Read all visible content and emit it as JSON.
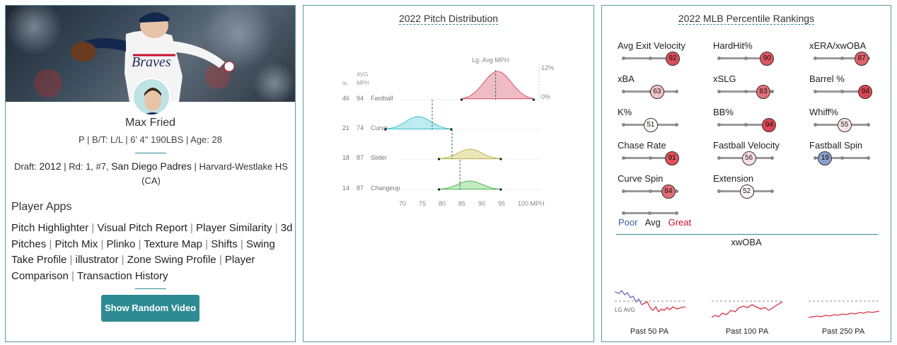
{
  "player": {
    "name": "Max Fried",
    "bio": "P | B/T: L/L | 6' 4\" 190LBS | Age: 28",
    "draft_prefix": "Draft: ",
    "draft_year": "2012",
    "draft_mid": " | Rd: 1, #7, ",
    "draft_team": "San Diego Padres",
    "draft_school": " | Harvard-Westlake HS (CA)"
  },
  "apps": {
    "title": "Player Apps",
    "items": [
      "Pitch Highlighter",
      "Visual Pitch Report",
      "Player Similarity",
      "3d Pitches",
      "Pitch Mix",
      "Plinko",
      "Texture Map",
      "Shifts",
      "Swing Take Profile",
      "illustrator",
      "Zone Swing Profile",
      "Player Comparison",
      "Transaction History"
    ],
    "separator": "|"
  },
  "button": {
    "random_video": "Show Random Video"
  },
  "pitch_dist": {
    "title": "2022 Pitch Distribution",
    "lg_avg_label": "Lg. Avg MPH",
    "col_pct": "%",
    "col_avg": "AVG",
    "col_mph": "MPH",
    "pct_max_label": "12%",
    "pct_min_label": "0%",
    "x_ticks": [
      "70",
      "75",
      "80",
      "85",
      "90",
      "95",
      "100 MPH"
    ],
    "pitches": [
      {
        "name": "Fastball",
        "pct": "46",
        "avg": "94",
        "color": "#e8a0ae",
        "line": "#d9506a"
      },
      {
        "name": "Curve",
        "pct": "21",
        "avg": "74",
        "color": "#9fe3ea",
        "line": "#3fc2cf"
      },
      {
        "name": "Slider",
        "pct": "18",
        "avg": "87",
        "color": "#e3dd9c",
        "line": "#bfb54a"
      },
      {
        "name": "Changeup",
        "pct": "14",
        "avg": "87",
        "color": "#a8e2a8",
        "line": "#52b852"
      }
    ]
  },
  "percentiles": {
    "title": "2022 MLB Percentile Rankings",
    "items": [
      {
        "label": "Avg Exit Velocity",
        "value": "92"
      },
      {
        "label": "HardHit%",
        "value": "90"
      },
      {
        "label": "xERA/xwOBA",
        "value": "87"
      },
      {
        "label": "xBA",
        "value": "63"
      },
      {
        "label": "xSLG",
        "value": "83"
      },
      {
        "label": "Barrel %",
        "value": "94"
      },
      {
        "label": "K%",
        "value": "51"
      },
      {
        "label": "BB%",
        "value": "94"
      },
      {
        "label": "Whiff%",
        "value": "55"
      },
      {
        "label": "Chase Rate",
        "value": "91"
      },
      {
        "label": "Fastball Velocity",
        "value": "56"
      },
      {
        "label": "Fastball Spin",
        "value": "19"
      },
      {
        "label": "Curve Spin",
        "value": "84"
      },
      {
        "label": "Extension",
        "value": "52"
      }
    ],
    "legend": {
      "poor": "Poor",
      "avg": "Avg",
      "great": "Great"
    },
    "colors": {
      "poor": "#3a5ba8",
      "great": "#c8102e"
    }
  },
  "xwoba": {
    "title": "xwOBA",
    "lg_avg": "LG AVG",
    "panels": [
      "Past 50 PA",
      "Past 100 PA",
      "Past 250 PA"
    ]
  }
}
